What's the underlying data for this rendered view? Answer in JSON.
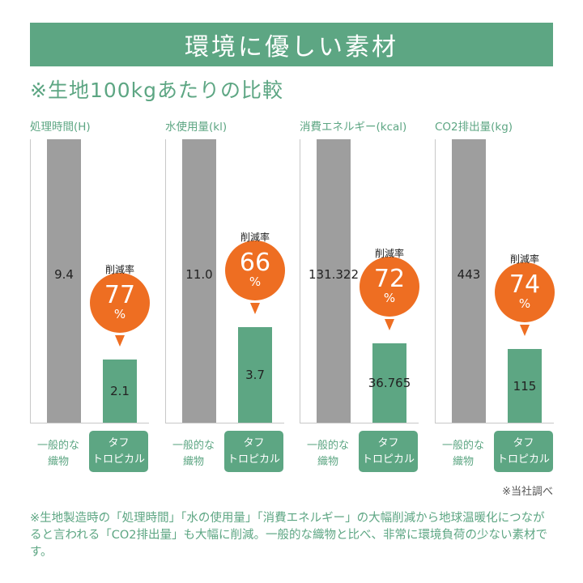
{
  "header": {
    "title": "環境に優しい素材"
  },
  "subtitle": "※生地100kgあたりの比較",
  "colors": {
    "accent": "#5da683",
    "gray": "#9e9e9e",
    "bubble": "#ee6e22"
  },
  "category_labels": {
    "conventional": "一般的な\n織物",
    "tough": "タフ\nトロピカル"
  },
  "reduction_label": "削減率",
  "percent_sign": "%",
  "chart_data": [
    {
      "type": "bar",
      "title": "処理時間(H)",
      "categories": [
        "一般的な織物",
        "タフトロピカル"
      ],
      "values": [
        9.4,
        2.1
      ],
      "value_labels": [
        "9.4",
        "2.1"
      ],
      "reduction": "77"
    },
    {
      "type": "bar",
      "title": "水使用量(kl)",
      "categories": [
        "一般的な織物",
        "タフトロピカル"
      ],
      "values": [
        11.0,
        3.7
      ],
      "value_labels": [
        "11.0",
        "3.7"
      ],
      "reduction": "66"
    },
    {
      "type": "bar",
      "title": "消費エネルギー(kcal)",
      "categories": [
        "一般的な織物",
        "タフトロピカル"
      ],
      "values": [
        131.322,
        36.765
      ],
      "value_labels": [
        "131.322",
        "36.765"
      ],
      "reduction": "72"
    },
    {
      "type": "bar",
      "title": "CO2排出量(kg)",
      "categories": [
        "一般的な織物",
        "タフトロピカル"
      ],
      "values": [
        443,
        115
      ],
      "value_labels": [
        "443",
        "115"
      ],
      "reduction": "74"
    }
  ],
  "source": "※当社調べ",
  "note": "※生地製造時の「処理時間」「水の使用量」「消費エネルギー」の大幅削減から地球温暖化につながると言われる「CO2排出量」も大幅に削減。一般的な織物と比べ、非常に環境負荷の少ない素材です。"
}
